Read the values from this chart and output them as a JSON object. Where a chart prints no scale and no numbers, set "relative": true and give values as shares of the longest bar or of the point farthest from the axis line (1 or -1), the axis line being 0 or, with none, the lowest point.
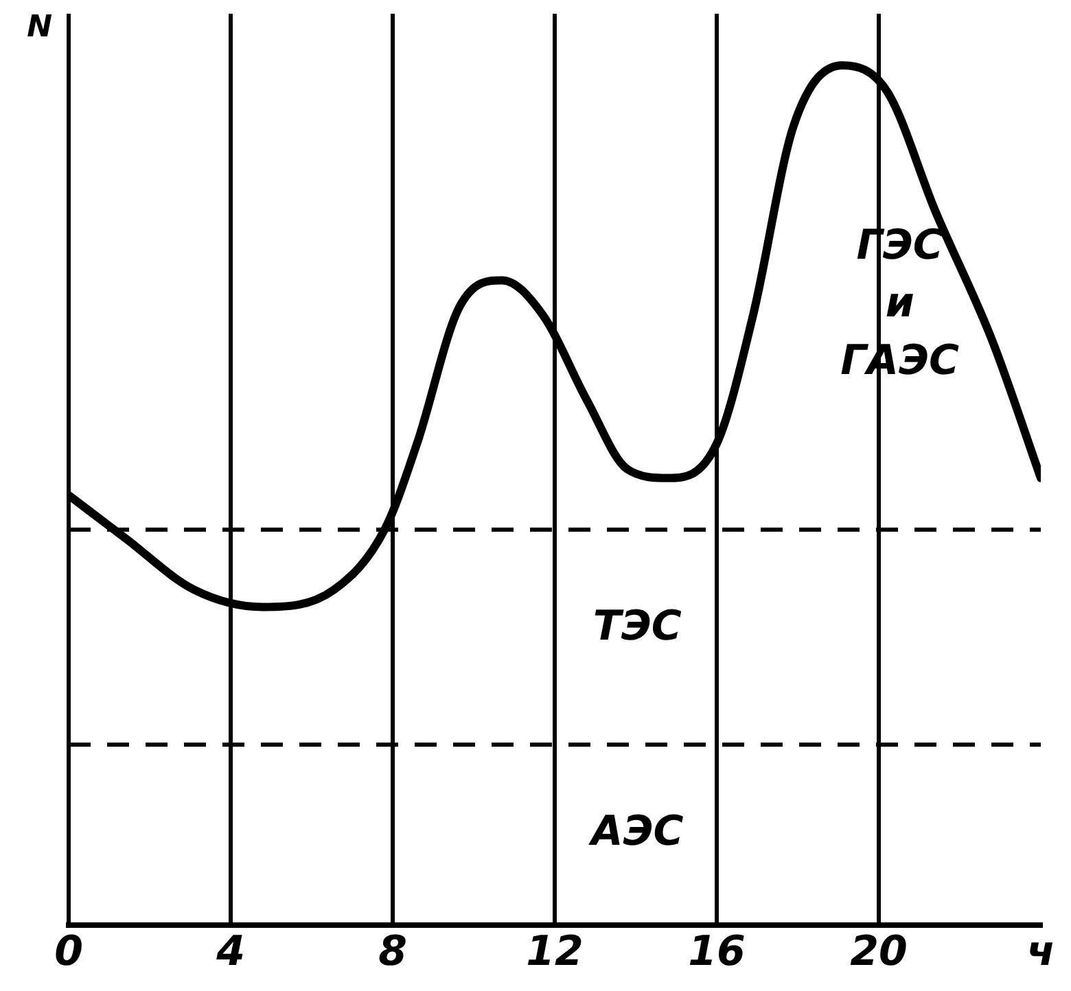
{
  "chart_data": {
    "type": "line",
    "ylabel": "N",
    "relative": true,
    "x": [
      0,
      1.4,
      3.1,
      4.8,
      6.55,
      7.8,
      8.6,
      9.66,
      10.7,
      11.7,
      12.8,
      13.8,
      14.8,
      16.0,
      16.9,
      17.9,
      19.1,
      20.2,
      21.4,
      22.8,
      24
    ],
    "series": [
      {
        "color": "#000000",
        "values": [
          0.5,
          0.45,
          0.39,
          0.37,
          0.39,
          0.46,
          0.56,
          0.72,
          0.75,
          0.71,
          0.61,
          0.53,
          0.52,
          0.56,
          0.71,
          0.93,
          1.0,
          0.97,
          0.83,
          0.68,
          0.52
        ]
      }
    ],
    "xlim": [
      0,
      24
    ],
    "xticks": [
      0,
      4,
      8,
      12,
      16,
      20,
      {
        "value": 24,
        "label": "ч"
      }
    ],
    "ref_lines": [
      {
        "axis": "y",
        "value": 0.46,
        "line_style": "dashed",
        "color": "#000000"
      },
      {
        "axis": "y",
        "value": 0.21,
        "line_style": "dashed",
        "color": "#000000"
      }
    ],
    "annotations": [
      "ГЭС и ГАЭС",
      "ТЭС",
      "АЭС"
    ],
    "grid": "x",
    "legend": false,
    "marker": "none",
    "line_style": "solid"
  }
}
